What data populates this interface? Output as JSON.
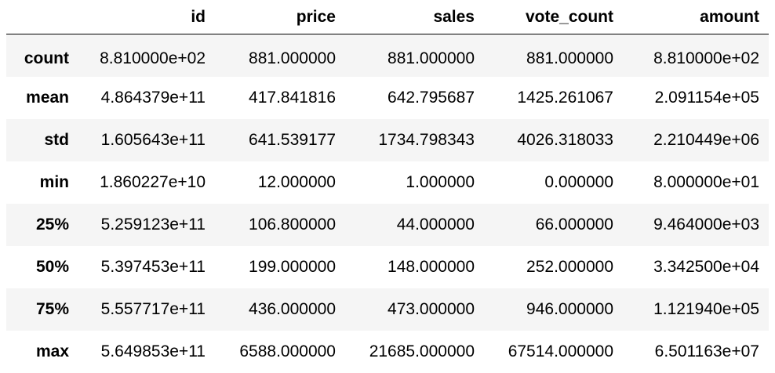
{
  "table": {
    "index_header": "",
    "columns": [
      "id",
      "price",
      "sales",
      "vote_count",
      "amount"
    ],
    "rows": [
      {
        "label": "count",
        "values": [
          "8.810000e+02",
          "881.000000",
          "881.000000",
          "881.000000",
          "8.810000e+02"
        ]
      },
      {
        "label": "mean",
        "values": [
          "4.864379e+11",
          "417.841816",
          "642.795687",
          "1425.261067",
          "2.091154e+05"
        ]
      },
      {
        "label": "std",
        "values": [
          "1.605643e+11",
          "641.539177",
          "1734.798343",
          "4026.318033",
          "2.210449e+06"
        ]
      },
      {
        "label": "min",
        "values": [
          "1.860227e+10",
          "12.000000",
          "1.000000",
          "0.000000",
          "8.000000e+01"
        ]
      },
      {
        "label": "25%",
        "values": [
          "5.259123e+11",
          "106.800000",
          "44.000000",
          "66.000000",
          "9.464000e+03"
        ]
      },
      {
        "label": "50%",
        "values": [
          "5.397453e+11",
          "199.000000",
          "148.000000",
          "252.000000",
          "3.342500e+04"
        ]
      },
      {
        "label": "75%",
        "values": [
          "5.557717e+11",
          "436.000000",
          "473.000000",
          "946.000000",
          "1.121940e+05"
        ]
      },
      {
        "label": "max",
        "values": [
          "5.649853e+11",
          "6588.000000",
          "21685.000000",
          "67514.000000",
          "6.501163e+07"
        ]
      }
    ]
  },
  "colors": {
    "stripe": "#f5f5f5",
    "background": "#ffffff",
    "text": "#000000",
    "header_rule": "#000000"
  }
}
